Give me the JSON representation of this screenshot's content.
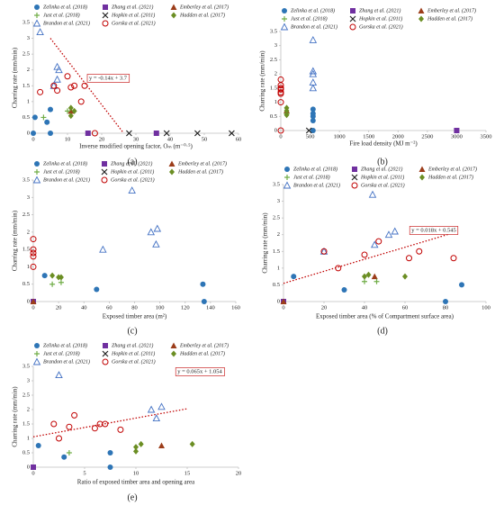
{
  "chart_data": [
    {
      "type": "scatter",
      "label": "(a)",
      "xlabel": "Inverse modified opening factor, Oₘ (m⁻⁰·⁵)",
      "ylabel": "Charring rate (mm/min)",
      "xlim": [
        0,
        60
      ],
      "xticks": [
        0,
        10,
        20,
        30,
        40,
        50,
        60
      ],
      "ylim": [
        0,
        3.5
      ],
      "yticks": [
        0,
        0.5,
        1,
        1.5,
        2,
        2.5,
        3,
        3.5
      ],
      "trendline": {
        "label": "y = -0.14x + 3.7",
        "slope": -0.14,
        "intercept": 3.7,
        "x": [
          5,
          26.4
        ]
      },
      "series": [
        {
          "name": "Zelinka et al. (2018)",
          "color": "#2e75b6",
          "marker": "circle",
          "x": [
            0.5,
            4,
            5,
            0,
            5
          ],
          "y": [
            0.5,
            0.35,
            0.75,
            0,
            0
          ]
        },
        {
          "name": "Zhang et al. (2021)",
          "color": "#7030a0",
          "marker": "square",
          "x": [
            16,
            36
          ],
          "y": [
            0,
            0
          ]
        },
        {
          "name": "Emberley et al. (2017)",
          "color": "#9c3d1a",
          "marker": "triangle",
          "x": [
            11
          ],
          "y": [
            0.7
          ]
        },
        {
          "name": "Just et al. (2018)",
          "color": "#70ad47",
          "marker": "plus",
          "x": [
            3,
            10
          ],
          "y": [
            0.5,
            0.7
          ]
        },
        {
          "name": "Hopkin et al. (2011)",
          "color": "#222222",
          "marker": "cross",
          "x": [
            28,
            39,
            48,
            58
          ],
          "y": [
            0,
            0,
            0,
            0
          ]
        },
        {
          "name": "Hadden et al. (2017)",
          "color": "#6b8e23",
          "marker": "diamond",
          "x": [
            11,
            11,
            12
          ],
          "y": [
            0.55,
            0.8,
            0.7
          ]
        },
        {
          "name": "Brandon et al. (2021)",
          "color": "#4472c4",
          "marker": "triangle-open",
          "x": [
            2,
            7,
            7.5,
            6,
            7
          ],
          "y": [
            3.2,
            2.1,
            2.0,
            1.5,
            1.7
          ]
        },
        {
          "name": "Gorska et al. (2021)",
          "color": "#c00000",
          "marker": "circle-open",
          "x": [
            2,
            6,
            7,
            10,
            11,
            12,
            14,
            15,
            18
          ],
          "y": [
            1.3,
            1.5,
            1.35,
            1.8,
            1.45,
            1.5,
            1.0,
            1.5,
            0
          ]
        }
      ]
    },
    {
      "type": "scatter",
      "label": "(b)",
      "xlabel": "Fire load density (MJ m⁻²)",
      "ylabel": "Charring rate (mm/min)",
      "xlim": [
        0,
        3500
      ],
      "xticks": [
        0,
        500,
        1000,
        1500,
        2000,
        2500,
        3000,
        3500
      ],
      "ylim": [
        0,
        3.5
      ],
      "yticks": [
        0,
        0.5,
        1,
        1.5,
        2,
        2.5,
        3,
        3.5
      ],
      "series": [
        {
          "name": "Zelinka et al. (2018)",
          "color": "#2e75b6",
          "marker": "circle",
          "x": [
            550,
            550,
            550,
            550,
            550
          ],
          "y": [
            0.75,
            0.5,
            0.35,
            0.6,
            0
          ]
        },
        {
          "name": "Zhang et al. (2021)",
          "color": "#7030a0",
          "marker": "square",
          "x": [
            3000
          ],
          "y": [
            0
          ]
        },
        {
          "name": "Emberley et al. (2017)",
          "color": "#9c3d1a",
          "marker": "triangle",
          "x": [
            100
          ],
          "y": [
            0.7
          ]
        },
        {
          "name": "Just et al. (2018)",
          "color": "#70ad47",
          "marker": "plus",
          "x": [
            100
          ],
          "y": [
            0.6
          ]
        },
        {
          "name": "Hopkin et al. (2011)",
          "color": "#222222",
          "marker": "cross",
          "x": [
            480
          ],
          "y": [
            0
          ]
        },
        {
          "name": "Hadden et al. (2017)",
          "color": "#6b8e23",
          "marker": "diamond",
          "x": [
            100,
            100,
            100
          ],
          "y": [
            0.55,
            0.8,
            0.7
          ]
        },
        {
          "name": "Brandon et al. (2021)",
          "color": "#4472c4",
          "marker": "triangle-open",
          "x": [
            550,
            550,
            550,
            550,
            550
          ],
          "y": [
            3.2,
            2.1,
            2.0,
            1.7,
            1.5
          ]
        },
        {
          "name": "Gorska et al. (2021)",
          "color": "#c00000",
          "marker": "circle-open",
          "x": [
            0,
            0,
            0,
            0,
            0,
            0,
            0,
            0,
            0
          ],
          "y": [
            1.3,
            1.5,
            1.35,
            1.8,
            1.45,
            1.5,
            1.0,
            1.6,
            0
          ]
        }
      ]
    },
    {
      "type": "scatter",
      "label": "(c)",
      "xlabel": "Exposed timber area (m²)",
      "ylabel": "Charring rate (mm/min)",
      "xlim": [
        0,
        160
      ],
      "xticks": [
        0,
        20,
        40,
        60,
        80,
        100,
        120,
        140,
        160
      ],
      "ylim": [
        0,
        3.5
      ],
      "yticks": [
        0,
        0.5,
        1,
        1.5,
        2,
        2.5,
        3,
        3.5
      ],
      "series": [
        {
          "name": "Zelinka et al. (2018)",
          "color": "#2e75b6",
          "marker": "circle",
          "x": [
            9,
            50,
            134,
            135
          ],
          "y": [
            0.75,
            0.35,
            0.5,
            0
          ]
        },
        {
          "name": "Zhang et al. (2021)",
          "color": "#7030a0",
          "marker": "square",
          "x": [
            0
          ],
          "y": [
            0
          ]
        },
        {
          "name": "Emberley et al. (2017)",
          "color": "#9c3d1a",
          "marker": "triangle",
          "x": [
            0
          ],
          "y": [
            0
          ]
        },
        {
          "name": "Just et al. (2018)",
          "color": "#70ad47",
          "marker": "plus",
          "x": [
            15,
            22
          ],
          "y": [
            0.5,
            0.55
          ]
        },
        {
          "name": "Hopkin et al. (2011)",
          "color": "#222222",
          "marker": "cross",
          "x": [],
          "y": []
        },
        {
          "name": "Hadden et al. (2017)",
          "color": "#6b8e23",
          "marker": "diamond",
          "x": [
            15,
            20,
            22
          ],
          "y": [
            0.75,
            0.7,
            0.7
          ]
        },
        {
          "name": "Brandon et al. (2021)",
          "color": "#4472c4",
          "marker": "triangle-open",
          "x": [
            78,
            93,
            98,
            97,
            55
          ],
          "y": [
            3.2,
            2.0,
            2.1,
            1.65,
            1.5
          ]
        },
        {
          "name": "Gorska et al. (2021)",
          "color": "#c00000",
          "marker": "circle-open",
          "x": [
            0,
            0,
            0,
            0,
            0
          ],
          "y": [
            1.8,
            1.5,
            1.4,
            1.3,
            1.0
          ]
        }
      ]
    },
    {
      "type": "scatter",
      "label": "(d)",
      "xlabel": "Exposed timber area (% of Compartment surface area)",
      "ylabel": "Charring rate (mm/min)",
      "xlim": [
        0,
        100
      ],
      "xticks": [
        0,
        20,
        40,
        60,
        80,
        100
      ],
      "ylim": [
        0,
        3.5
      ],
      "yticks": [
        0,
        0.5,
        1,
        1.5,
        2,
        2.5,
        3,
        3.5
      ],
      "trendline": {
        "label": "y = 0.018x + 0.545",
        "slope": 0.018,
        "intercept": 0.545,
        "x": [
          0,
          85
        ]
      },
      "series": [
        {
          "name": "Zelinka et al. (2018)",
          "color": "#2e75b6",
          "marker": "circle",
          "x": [
            5,
            30,
            80,
            88
          ],
          "y": [
            0.75,
            0.35,
            0,
            0.5
          ]
        },
        {
          "name": "Zhang et al. (2021)",
          "color": "#7030a0",
          "marker": "square",
          "x": [
            0
          ],
          "y": [
            0
          ]
        },
        {
          "name": "Emberley et al. (2017)",
          "color": "#9c3d1a",
          "marker": "triangle",
          "x": [
            0,
            45
          ],
          "y": [
            0,
            0.75
          ]
        },
        {
          "name": "Just et al. (2018)",
          "color": "#70ad47",
          "marker": "plus",
          "x": [
            40,
            46
          ],
          "y": [
            0.6,
            0.6
          ]
        },
        {
          "name": "Hopkin et al. (2011)",
          "color": "#222222",
          "marker": "cross",
          "x": [],
          "y": []
        },
        {
          "name": "Hadden et al. (2017)",
          "color": "#6b8e23",
          "marker": "diamond",
          "x": [
            40,
            42,
            60
          ],
          "y": [
            0.75,
            0.8,
            0.75
          ]
        },
        {
          "name": "Brandon et al. (2021)",
          "color": "#4472c4",
          "marker": "triangle-open",
          "x": [
            44,
            20,
            52,
            55,
            45
          ],
          "y": [
            3.2,
            1.5,
            2.0,
            2.1,
            1.7
          ]
        },
        {
          "name": "Gorska et al. (2021)",
          "color": "#c00000",
          "marker": "circle-open",
          "x": [
            20,
            27,
            40,
            47,
            62,
            67,
            84
          ],
          "y": [
            1.5,
            1.0,
            1.4,
            1.8,
            1.3,
            1.5,
            1.3
          ]
        }
      ]
    },
    {
      "type": "scatter",
      "label": "(e)",
      "xlabel": "Ratio of exposed timber area and opening area",
      "ylabel": "Charring rate (mm/min)",
      "xlim": [
        0,
        20
      ],
      "xticks": [
        0,
        5,
        10,
        15,
        20
      ],
      "ylim": [
        0,
        3.5
      ],
      "yticks": [
        0,
        0.5,
        1,
        1.5,
        2,
        2.5,
        3,
        3.5
      ],
      "trendline": {
        "label": "y = 0.065x + 1.054",
        "slope": 0.065,
        "intercept": 1.054,
        "x": [
          0,
          15
        ]
      },
      "series": [
        {
          "name": "Zelinka et al. (2018)",
          "color": "#2e75b6",
          "marker": "circle",
          "x": [
            0.5,
            3,
            7.5,
            7.5
          ],
          "y": [
            0.75,
            0.35,
            0.5,
            0
          ]
        },
        {
          "name": "Zhang et al. (2021)",
          "color": "#7030a0",
          "marker": "square",
          "x": [
            0
          ],
          "y": [
            0
          ]
        },
        {
          "name": "Emberley et al. (2017)",
          "color": "#9c3d1a",
          "marker": "triangle",
          "x": [
            12.5
          ],
          "y": [
            0.75
          ]
        },
        {
          "name": "Just et al. (2018)",
          "color": "#70ad47",
          "marker": "plus",
          "x": [
            3.5
          ],
          "y": [
            0.5
          ]
        },
        {
          "name": "Hopkin et al. (2011)",
          "color": "#222222",
          "marker": "cross",
          "x": [],
          "y": []
        },
        {
          "name": "Hadden et al. (2017)",
          "color": "#6b8e23",
          "marker": "diamond",
          "x": [
            10,
            10,
            10.5,
            15.5
          ],
          "y": [
            0.55,
            0.7,
            0.8,
            0.8
          ]
        },
        {
          "name": "Brandon et al. (2021)",
          "color": "#4472c4",
          "marker": "triangle-open",
          "x": [
            2.5,
            11.5,
            12.5,
            12
          ],
          "y": [
            3.2,
            2.0,
            2.1,
            1.7
          ]
        },
        {
          "name": "Gorska et al. (2021)",
          "color": "#c00000",
          "marker": "circle-open",
          "x": [
            2,
            2.5,
            3.5,
            4,
            6,
            6.5,
            7,
            8.5
          ],
          "y": [
            1.5,
            1.0,
            1.4,
            1.8,
            1.35,
            1.5,
            1.5,
            1.3
          ]
        }
      ]
    }
  ]
}
